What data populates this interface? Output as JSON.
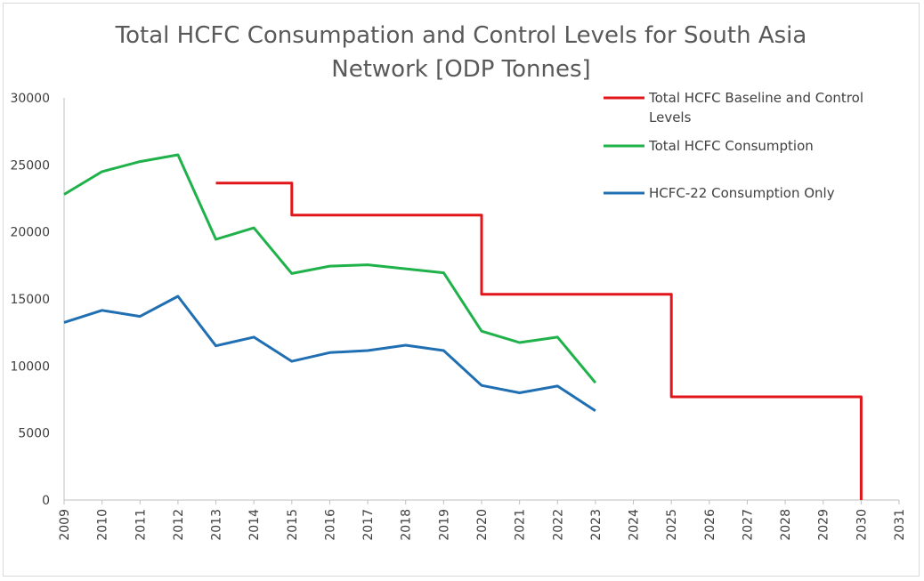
{
  "chart_data": {
    "type": "line",
    "title_lines": [
      "Total HCFC Consumpation and Control Levels for South Asia",
      "Network [ODP Tonnes]"
    ],
    "xlabel": "",
    "ylabel": "",
    "ylim": [
      0,
      30000
    ],
    "yticks": [
      "0",
      "5000",
      "10000",
      "15000",
      "20000",
      "25000",
      "30000"
    ],
    "x_categories": [
      "2009",
      "2010",
      "2011",
      "2012",
      "2013",
      "2014",
      "2015",
      "2016",
      "2017",
      "2018",
      "2019",
      "2020",
      "2021",
      "2022",
      "2023",
      "2024",
      "2025",
      "2026",
      "2027",
      "2028",
      "2029",
      "2030",
      "2031"
    ],
    "grid": false,
    "legend_position": "top-right",
    "series": [
      {
        "name": "Total HCFC Baseline and Control Levels",
        "legend_lines": [
          "Total HCFC Baseline and Control",
          "Levels"
        ],
        "color": "#e0161b",
        "step": true,
        "points": [
          [
            2013,
            23650
          ],
          [
            2015,
            23650
          ],
          [
            2015,
            21250
          ],
          [
            2020,
            21250
          ],
          [
            2020,
            15350
          ],
          [
            2025,
            15350
          ],
          [
            2025,
            7700
          ],
          [
            2030,
            7700
          ],
          [
            2030,
            0
          ]
        ]
      },
      {
        "name": "Total HCFC Consumption",
        "legend_lines": [
          "Total HCFC Consumption"
        ],
        "color": "#1fb14a",
        "points": [
          [
            2009,
            22800
          ],
          [
            2010,
            24500
          ],
          [
            2011,
            25250
          ],
          [
            2012,
            25750
          ],
          [
            2013,
            19450
          ],
          [
            2014,
            20300
          ],
          [
            2015,
            16900
          ],
          [
            2016,
            17450
          ],
          [
            2017,
            17550
          ],
          [
            2018,
            17250
          ],
          [
            2019,
            16950
          ],
          [
            2020,
            12600
          ],
          [
            2021,
            11750
          ],
          [
            2022,
            12150
          ],
          [
            2023,
            8750
          ]
        ]
      },
      {
        "name": "HCFC-22 Consumption Only",
        "legend_lines": [
          "HCFC-22 Consumption Only"
        ],
        "color": "#1f6fb2",
        "points": [
          [
            2009,
            13250
          ],
          [
            2010,
            14150
          ],
          [
            2011,
            13700
          ],
          [
            2012,
            15200
          ],
          [
            2013,
            11500
          ],
          [
            2014,
            12150
          ],
          [
            2015,
            10350
          ],
          [
            2016,
            11000
          ],
          [
            2017,
            11150
          ],
          [
            2018,
            11550
          ],
          [
            2019,
            11150
          ],
          [
            2020,
            8550
          ],
          [
            2021,
            8000
          ],
          [
            2022,
            8500
          ],
          [
            2023,
            6650
          ]
        ]
      }
    ]
  }
}
